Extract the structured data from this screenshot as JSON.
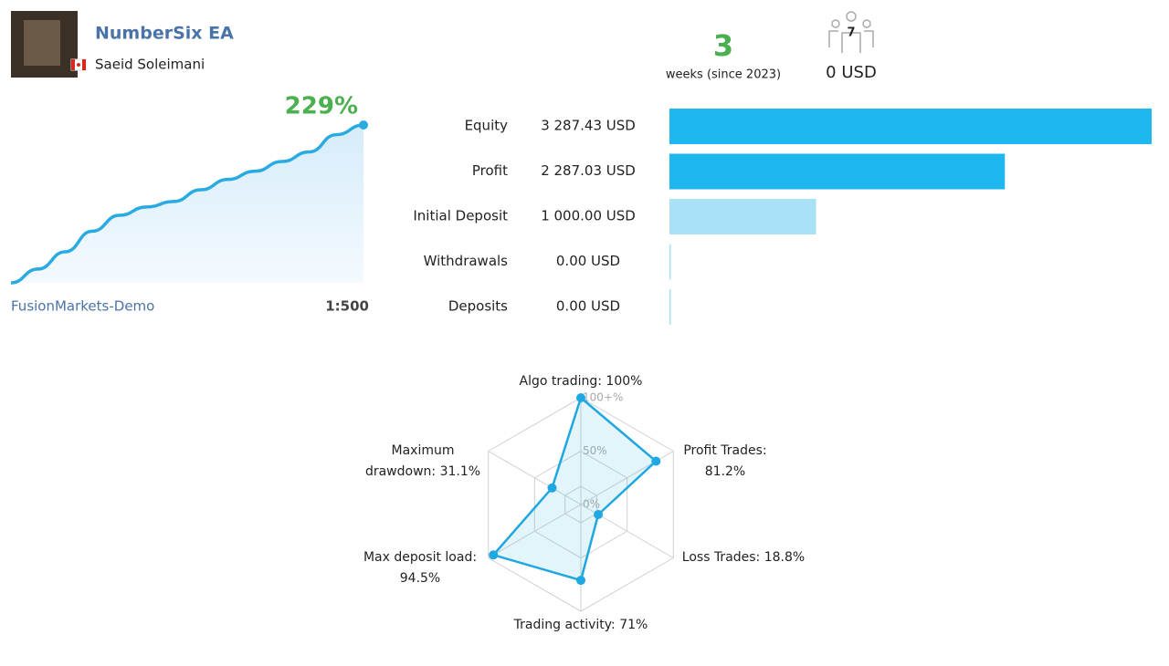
{
  "header": {
    "title": "NumberSix EA",
    "author": "Saeid Soleimani"
  },
  "stats": {
    "weeks": "3",
    "weeks_label": "weeks (since 2023)",
    "subscribers": "7",
    "subscription_cost": "0 USD"
  },
  "chart_data": [
    {
      "type": "line",
      "color": "#29abe2",
      "values": [
        0,
        20,
        45,
        75,
        98,
        110,
        118,
        135,
        150,
        162,
        176,
        190,
        215,
        229
      ],
      "value_labels": [
        null,
        null,
        null,
        null,
        null,
        null,
        null,
        null,
        null,
        null,
        null,
        null,
        null,
        "229%"
      ],
      "server": "FusionMarkets-Demo",
      "leverage": "1:500"
    },
    {
      "type": "hbar",
      "categories": [
        "Equity",
        "Profit",
        "Initial Deposit",
        "Withdrawals",
        "Deposits"
      ],
      "values": [
        3287.43,
        2287.03,
        1000,
        0,
        0
      ],
      "value_labels": [
        "3 287.43 USD",
        "2 287.03 USD",
        "1 000.00 USD",
        "0.00 USD",
        "0.00 USD"
      ],
      "colors": [
        "#1eb8ef",
        "#1eb8ef",
        "#a9e2f7",
        "#a9e2f7",
        "#a9e2f7"
      ]
    },
    {
      "type": "radar",
      "color": "#1ea7e1",
      "labels": [
        [
          "Algo trading: 100%"
        ],
        [
          "Profit Trades:",
          "81.2%"
        ],
        [
          "Loss Trades: 18.8%"
        ],
        [
          "Trading activity: 71%"
        ],
        [
          "Max deposit load:",
          "94.5%"
        ],
        [
          "Maximum",
          "drawdown: 31.1%"
        ]
      ],
      "values": [
        100,
        81.2,
        18.8,
        71,
        94.5,
        31.1
      ],
      "rlim": [
        0,
        100
      ],
      "rticks": [
        {
          "value": 0,
          "label": "0%"
        },
        {
          "value": 50,
          "label": "50%"
        },
        {
          "value": 100,
          "label": "100+%"
        }
      ]
    }
  ]
}
